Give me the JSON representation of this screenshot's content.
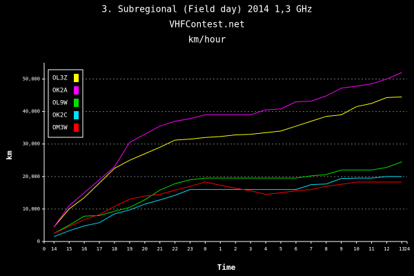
{
  "chart_data": {
    "type": "line",
    "title": "3. Subregional (Field day) 2014 1,3 GHz",
    "subtitle": "VHFContest.net",
    "subtitle2": "km/hour",
    "x_label": "Time",
    "y_label": "km",
    "legend": "upper left",
    "grid": true,
    "xlim": [
      0,
      24
    ],
    "ylim": [
      0,
      55000
    ],
    "xticks": [
      {
        "value": 0,
        "label": "0"
      },
      {
        "value": 0.65,
        "label": "14"
      },
      {
        "value": 1.65,
        "label": "15"
      },
      {
        "value": 2.65,
        "label": "16"
      },
      {
        "value": 3.65,
        "label": "17"
      },
      {
        "value": 4.65,
        "label": "18"
      },
      {
        "value": 5.65,
        "label": "19"
      },
      {
        "value": 6.65,
        "label": "20"
      },
      {
        "value": 7.65,
        "label": "21"
      },
      {
        "value": 8.65,
        "label": "22"
      },
      {
        "value": 9.65,
        "label": "23"
      },
      {
        "value": 10.65,
        "label": "0"
      },
      {
        "value": 11.65,
        "label": "1"
      },
      {
        "value": 12.65,
        "label": "2"
      },
      {
        "value": 13.65,
        "label": "3"
      },
      {
        "value": 14.65,
        "label": "4"
      },
      {
        "value": 15.65,
        "label": "5"
      },
      {
        "value": 16.65,
        "label": "6"
      },
      {
        "value": 17.65,
        "label": "7"
      },
      {
        "value": 18.65,
        "label": "8"
      },
      {
        "value": 19.65,
        "label": "9"
      },
      {
        "value": 20.65,
        "label": "10"
      },
      {
        "value": 21.65,
        "label": "11"
      },
      {
        "value": 22.65,
        "label": "12"
      },
      {
        "value": 23.65,
        "label": "13"
      },
      {
        "value": 24,
        "label": "24"
      }
    ],
    "yticks": [
      0,
      {
        "value": 10000,
        "label": "10,000"
      },
      {
        "value": 20000,
        "label": "20,000"
      },
      {
        "value": 30000,
        "label": "30,000"
      },
      {
        "value": 40000,
        "label": "40,000"
      },
      {
        "value": 50000,
        "label": "50,000"
      }
    ],
    "x": [
      0.65,
      1.65,
      2.65,
      3.65,
      4.65,
      5.65,
      6.65,
      7.65,
      8.65,
      9.65,
      10.65,
      11.65,
      12.65,
      13.65,
      14.65,
      15.65,
      16.65,
      17.65,
      18.65,
      19.65,
      20.65,
      21.65,
      22.65,
      23.65
    ],
    "series": [
      {
        "name": "OL3Z",
        "color": "#ffff00",
        "values": [
          4500,
          10000,
          13500,
          18000,
          22500,
          25000,
          27000,
          29000,
          31200,
          31500,
          32000,
          32300,
          32800,
          33000,
          33500,
          34000,
          35500,
          37000,
          38500,
          39000,
          41500,
          42500,
          44300,
          44500
        ]
      },
      {
        "name": "OK2A",
        "color": "#ff00ff",
        "values": [
          4500,
          11000,
          15000,
          19000,
          23000,
          30500,
          33000,
          35500,
          37000,
          37800,
          39000,
          39000,
          39000,
          39000,
          40500,
          40800,
          43000,
          43200,
          44800,
          47200,
          47800,
          48500,
          50000,
          52000
        ]
      },
      {
        "name": "OL9W",
        "color": "#00e000",
        "values": [
          2500,
          5000,
          7800,
          8000,
          9300,
          10500,
          12800,
          15800,
          17800,
          19000,
          19500,
          19500,
          19500,
          19500,
          19500,
          19500,
          19500,
          20200,
          20600,
          22000,
          22000,
          22000,
          22800,
          24500
        ]
      },
      {
        "name": "OK2C",
        "color": "#00e0ff",
        "values": [
          1500,
          3300,
          4800,
          5800,
          8500,
          9700,
          11500,
          12800,
          14200,
          16000,
          16000,
          16000,
          16000,
          16000,
          16000,
          16000,
          16000,
          17500,
          17700,
          19400,
          19500,
          19500,
          20000,
          20000
        ]
      },
      {
        "name": "OM3W",
        "color": "#ff0000",
        "values": [
          2500,
          4600,
          6700,
          8300,
          10800,
          13000,
          14000,
          14500,
          15800,
          17000,
          18300,
          17300,
          16400,
          15600,
          14500,
          15000,
          15600,
          16000,
          17000,
          17600,
          18300,
          18300,
          18300,
          18300
        ]
      }
    ]
  }
}
